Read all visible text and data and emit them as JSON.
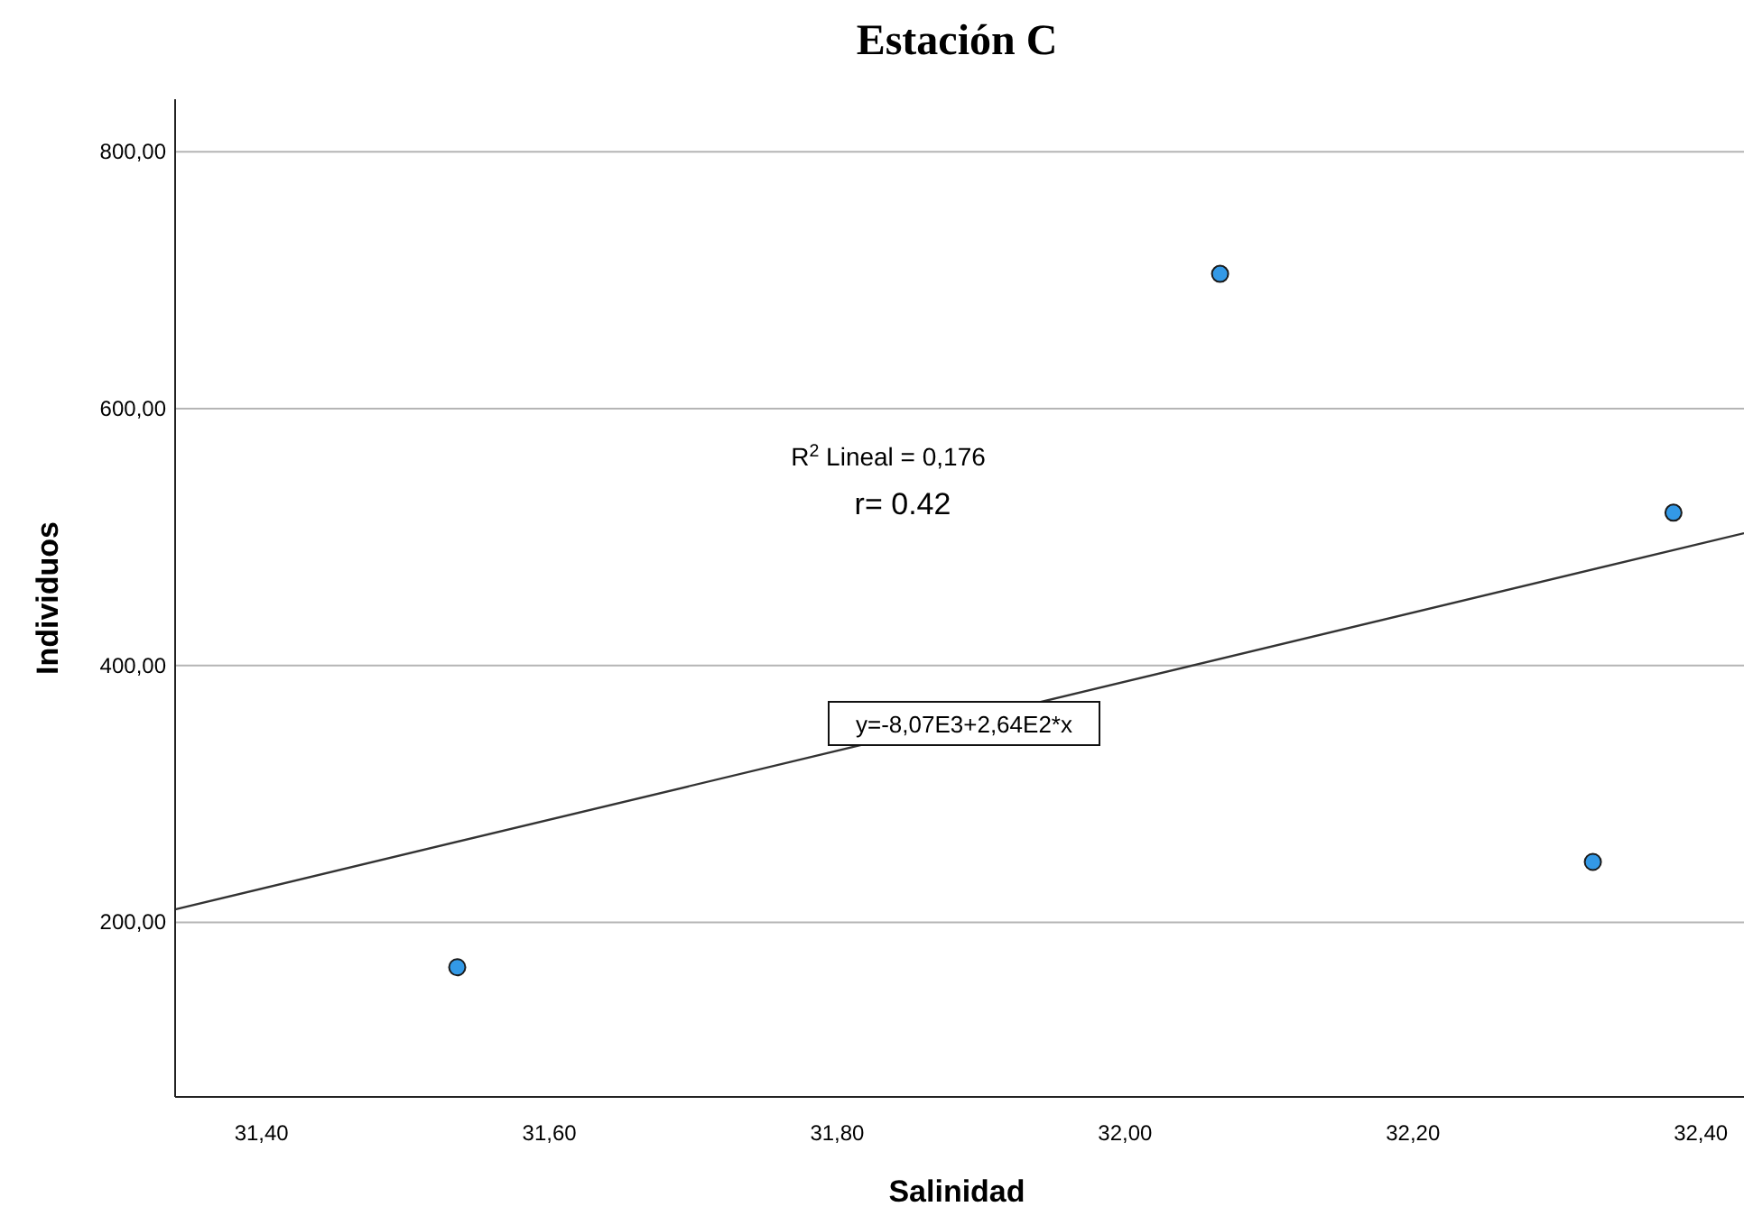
{
  "chart_data": {
    "type": "scatter",
    "title": "Estación C",
    "xlabel": "Salinidad",
    "ylabel": "Individuos",
    "xlim": [
      31.34,
      32.43
    ],
    "ylim": [
      64,
      841
    ],
    "xticks": [
      {
        "value": 31.4,
        "label": "31,40"
      },
      {
        "value": 31.6,
        "label": "31,60"
      },
      {
        "value": 31.8,
        "label": "31,80"
      },
      {
        "value": 32.0,
        "label": "32,00"
      },
      {
        "value": 32.2,
        "label": "32,20"
      },
      {
        "value": 32.4,
        "label": "32,40"
      }
    ],
    "yticks": [
      {
        "value": 200,
        "label": "200,00"
      },
      {
        "value": 400,
        "label": "400,00"
      },
      {
        "value": 600,
        "label": "600,00"
      },
      {
        "value": 800,
        "label": "800,00"
      }
    ],
    "grid": "y",
    "series": [
      {
        "marker": "circle",
        "color": "#3399e6",
        "x": [
          31.536,
          32.066,
          32.381,
          32.325
        ],
        "values": [
          165,
          705,
          519,
          247
        ]
      },
      {
        "type": "line",
        "color": "#333333",
        "x": [
          31.34,
          32.43
        ],
        "values": [
          210,
          503
        ]
      }
    ],
    "annotations": [
      "R$^{2}$ Lineal = 0,176",
      "r= 0.42",
      "y=-8,07E3+2,64E2*x"
    ]
  }
}
